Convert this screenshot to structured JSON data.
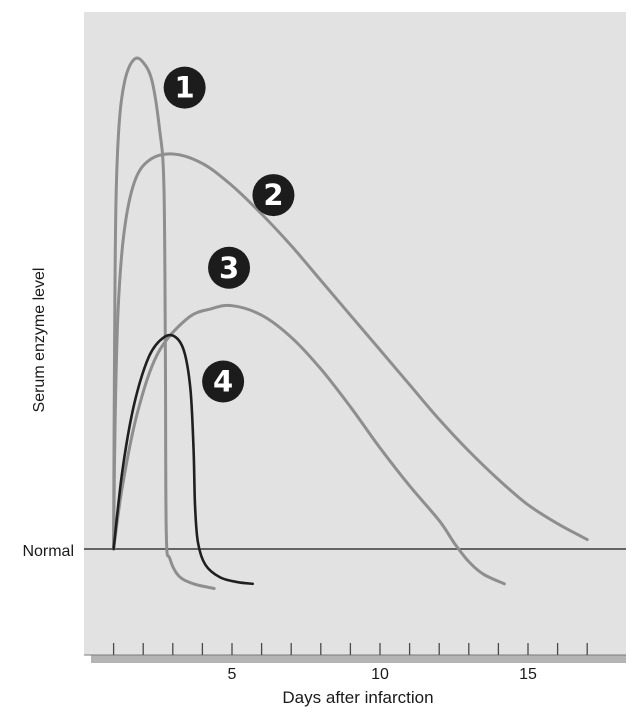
{
  "chart_data": {
    "type": "line",
    "title": "",
    "xlabel": "Days after infarction",
    "ylabel": "Serum enzyme level",
    "baseline_label": "Normal",
    "x_ticks": [
      5,
      10,
      15
    ],
    "xlim": [
      0,
      18
    ],
    "ylim": [
      -1.7,
      16.7
    ],
    "y_units": "relative level above Normal (arbitrary)",
    "grid": false,
    "legend": "numbered markers on curves",
    "colors": {
      "background": "#e2e2e2",
      "shadow": "#b4b4b4",
      "gray_curve": "#8e8e8e",
      "dark_curve": "#1f1f1f",
      "marker_fill": "#1c1c1c",
      "marker_text": "#ffffff"
    },
    "series": [
      {
        "name": "1",
        "color": "#8e8e8e",
        "points": [
          [
            1,
            0
          ],
          [
            1.03,
            6
          ],
          [
            1.08,
            11
          ],
          [
            1.2,
            13.6
          ],
          [
            1.4,
            14.9
          ],
          [
            1.7,
            15.5
          ],
          [
            2,
            15.4
          ],
          [
            2.3,
            14.8
          ],
          [
            2.55,
            13.3
          ],
          [
            2.7,
            11.5
          ],
          [
            2.75,
            6
          ],
          [
            2.78,
            0.5
          ],
          [
            2.9,
            -0.3
          ],
          [
            3.2,
            -0.85
          ],
          [
            3.7,
            -1.1
          ],
          [
            4.4,
            -1.25
          ]
        ]
      },
      {
        "name": "2",
        "color": "#8e8e8e",
        "points": [
          [
            1,
            0
          ],
          [
            1.05,
            4
          ],
          [
            1.15,
            7.5
          ],
          [
            1.35,
            10
          ],
          [
            1.7,
            11.6
          ],
          [
            2.2,
            12.3
          ],
          [
            3,
            12.5
          ],
          [
            4,
            12.2
          ],
          [
            5,
            11.5
          ],
          [
            6,
            10.6
          ],
          [
            7,
            9.6
          ],
          [
            8,
            8.5
          ],
          [
            9,
            7.4
          ],
          [
            10,
            6.3
          ],
          [
            11,
            5.2
          ],
          [
            12,
            4.1
          ],
          [
            13,
            3.1
          ],
          [
            14,
            2.2
          ],
          [
            15,
            1.4
          ],
          [
            16,
            0.8
          ],
          [
            17,
            0.3
          ]
        ]
      },
      {
        "name": "3",
        "color": "#8e8e8e",
        "points": [
          [
            1,
            0
          ],
          [
            1.3,
            2
          ],
          [
            1.8,
            4.3
          ],
          [
            2.5,
            6.2
          ],
          [
            3.5,
            7.3
          ],
          [
            4.3,
            7.6
          ],
          [
            5,
            7.7
          ],
          [
            6,
            7.4
          ],
          [
            7,
            6.7
          ],
          [
            8,
            5.7
          ],
          [
            9,
            4.5
          ],
          [
            10,
            3.2
          ],
          [
            11,
            2
          ],
          [
            12,
            0.9
          ],
          [
            12.5,
            0.2
          ],
          [
            13,
            -0.4
          ],
          [
            13.5,
            -0.8
          ],
          [
            14.2,
            -1.1
          ]
        ]
      },
      {
        "name": "4",
        "color": "#1f1f1f",
        "points": [
          [
            1,
            0
          ],
          [
            1.3,
            2.5
          ],
          [
            1.7,
            4.6
          ],
          [
            2.2,
            6.1
          ],
          [
            2.7,
            6.7
          ],
          [
            3.1,
            6.7
          ],
          [
            3.4,
            6.2
          ],
          [
            3.6,
            5
          ],
          [
            3.7,
            3.2
          ],
          [
            3.75,
            1.4
          ],
          [
            3.85,
            0.2
          ],
          [
            4.1,
            -0.5
          ],
          [
            4.6,
            -0.9
          ],
          [
            5.2,
            -1.05
          ],
          [
            5.7,
            -1.1
          ]
        ]
      }
    ],
    "markers": [
      {
        "label": "1",
        "x": 3.4,
        "y": 14.6
      },
      {
        "label": "2",
        "x": 6.4,
        "y": 11.2
      },
      {
        "label": "3",
        "x": 4.9,
        "y": 8.9
      },
      {
        "label": "4",
        "x": 4.7,
        "y": 5.3
      }
    ]
  }
}
